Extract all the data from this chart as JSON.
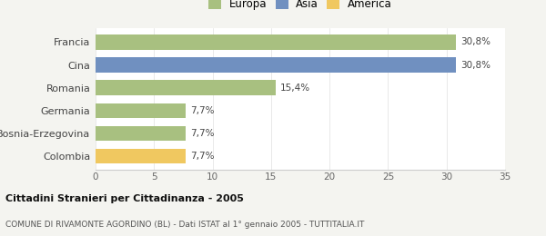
{
  "categories": [
    "Francia",
    "Cina",
    "Romania",
    "Germania",
    "Bosnia-Erzegovina",
    "Colombia"
  ],
  "values": [
    30.8,
    30.8,
    15.4,
    7.7,
    7.7,
    7.7
  ],
  "labels": [
    "30,8%",
    "30,8%",
    "15,4%",
    "7,7%",
    "7,7%",
    "7,7%"
  ],
  "colors": [
    "#a8c080",
    "#7090c0",
    "#a8c080",
    "#a8c080",
    "#a8c080",
    "#f0c860"
  ],
  "legend_items": [
    {
      "label": "Europa",
      "color": "#a8c080"
    },
    {
      "label": "Asia",
      "color": "#7090c0"
    },
    {
      "label": "America",
      "color": "#f0c860"
    }
  ],
  "xlim": [
    0,
    35
  ],
  "xticks": [
    0,
    5,
    10,
    15,
    20,
    25,
    30,
    35
  ],
  "title": "Cittadini Stranieri per Cittadinanza - 2005",
  "subtitle": "COMUNE DI RIVAMONTE AGORDINO (BL) - Dati ISTAT al 1° gennaio 2005 - TUTTITALIA.IT",
  "background_color": "#f4f4f0",
  "plot_bg_color": "#ffffff"
}
